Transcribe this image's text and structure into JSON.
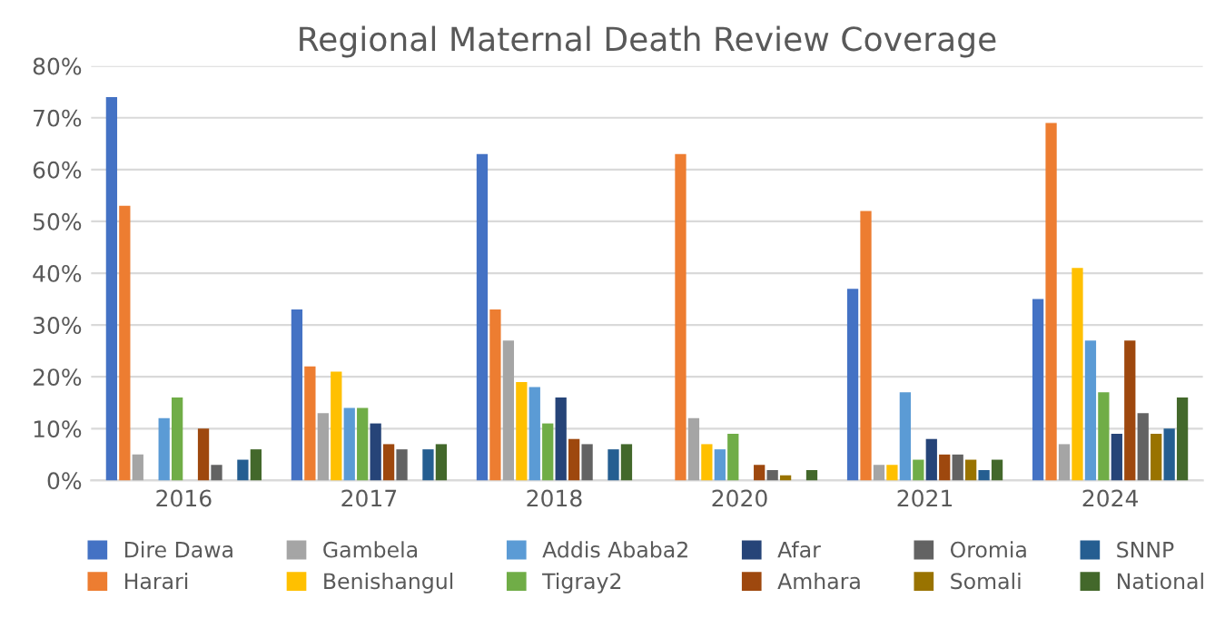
{
  "chart_data": {
    "type": "bar",
    "title": "Regional Maternal Death Review Coverage",
    "categories": [
      "2016",
      "2017",
      "2018",
      "2020",
      "2021",
      "2024"
    ],
    "series": [
      {
        "name": "Dire Dawa",
        "color": "#4472c4",
        "values": [
          74,
          33,
          63,
          0,
          37,
          35
        ]
      },
      {
        "name": "Harari",
        "color": "#ed7d31",
        "values": [
          53,
          22,
          33,
          63,
          52,
          69
        ]
      },
      {
        "name": "Gambela",
        "color": "#a5a5a5",
        "values": [
          5,
          13,
          27,
          12,
          3,
          7
        ]
      },
      {
        "name": "Benishangul",
        "color": "#ffc000",
        "values": [
          0,
          21,
          19,
          7,
          3,
          41
        ]
      },
      {
        "name": "Addis Ababa2",
        "color": "#5b9bd5",
        "values": [
          12,
          14,
          18,
          6,
          17,
          27
        ]
      },
      {
        "name": "Tigray2",
        "color": "#70ad47",
        "values": [
          16,
          14,
          11,
          9,
          4,
          17
        ]
      },
      {
        "name": "Afar",
        "color": "#264478",
        "values": [
          0,
          11,
          16,
          0,
          8,
          9
        ]
      },
      {
        "name": "Amhara",
        "color": "#9e480e",
        "values": [
          10,
          7,
          8,
          3,
          5,
          27
        ]
      },
      {
        "name": "Oromia",
        "color": "#636363",
        "values": [
          3,
          6,
          7,
          2,
          5,
          13
        ]
      },
      {
        "name": "Somali",
        "color": "#997300",
        "values": [
          0,
          0,
          0,
          1,
          4,
          9
        ]
      },
      {
        "name": "SNNP",
        "color": "#255e91",
        "values": [
          4,
          6,
          6,
          0,
          2,
          10
        ]
      },
      {
        "name": "National",
        "color": "#43682b",
        "values": [
          6,
          7,
          7,
          2,
          4,
          16
        ]
      }
    ],
    "ylim": [
      0,
      80
    ],
    "yticks": [
      {
        "value": 0,
        "label": "0%"
      },
      {
        "value": 10,
        "label": "10%"
      },
      {
        "value": 20,
        "label": "20%"
      },
      {
        "value": 30,
        "label": "30%"
      },
      {
        "value": 40,
        "label": "40%"
      },
      {
        "value": 50,
        "label": "50%"
      },
      {
        "value": 60,
        "label": "60%"
      },
      {
        "value": 70,
        "label": "70%"
      },
      {
        "value": 80,
        "label": "80%"
      }
    ],
    "grid": "y",
    "legend": "bottom"
  }
}
